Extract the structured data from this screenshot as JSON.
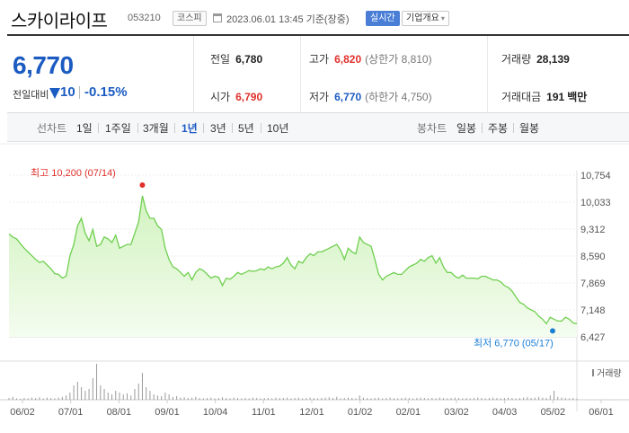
{
  "header": {
    "name": "스카이라이프",
    "code": "053210",
    "market": "코스피",
    "datetime": "2023.06.01 13:45 기준(장중)",
    "live_label": "실시간",
    "company_label": "기업개요",
    "chevron": "▾"
  },
  "summary": {
    "price": "6,770",
    "change_label": "전일대비",
    "change_value": "10",
    "change_percent": "-0.15%",
    "prev_close": {
      "label": "전일",
      "value": "6,780"
    },
    "open": {
      "label": "시가",
      "value": "6,790"
    },
    "high": {
      "label": "고가",
      "value": "6,820",
      "sub": "(상한가 8,810)"
    },
    "low": {
      "label": "저가",
      "value": "6,770",
      "sub": "(하한가 4,750)"
    },
    "volume": {
      "label": "거래량",
      "value": "28,139"
    },
    "turnover": {
      "label": "거래대금",
      "value": "191",
      "unit": "백만"
    }
  },
  "period_bar": {
    "line_title": "선차트",
    "line_options": [
      "1일",
      "1주일",
      "3개월",
      "1년",
      "3년",
      "5년",
      "10년"
    ],
    "active_option": "1년",
    "candle_title": "봉차트",
    "candle_options": [
      "일봉",
      "주봉",
      "월봉"
    ]
  },
  "chart_data": {
    "type": "area",
    "ylim": [
      6427,
      10754
    ],
    "y_ticks": [
      10754,
      10033,
      9312,
      8590,
      7869,
      7148,
      6427
    ],
    "y_tick_labels": [
      "10,754",
      "10,033",
      "9,312",
      "8,590",
      "7,869",
      "7,148",
      "6,427"
    ],
    "x_tick_labels": [
      "06/02",
      "07/01",
      "08/01",
      "09/01",
      "10/04",
      "11/01",
      "12/01",
      "01/02",
      "02/01",
      "03/02",
      "04/03",
      "05/02",
      "06/01"
    ],
    "max_label": "최고 10,200 (07/14)",
    "min_label": "최저 6,770 (05/17)",
    "volume_label": "거래량",
    "colors": {
      "line": "#6fcf4f",
      "fill_top": "#d2f3c0",
      "fill_bottom": "#f4fcef",
      "max": "#e0302b",
      "min": "#1b7fd6",
      "volume": "#9a9a9a"
    },
    "series": [
      {
        "values": [
          9180,
          9100,
          9050,
          8920,
          8800,
          8700,
          8600,
          8500,
          8420,
          8450,
          8350,
          8250,
          8120,
          8100,
          8000,
          8050,
          8600,
          8900,
          9400,
          9600,
          9200,
          9000,
          9300,
          8850,
          8900,
          9100,
          9050,
          8950,
          9150,
          8800,
          8850,
          8900,
          8900,
          9200,
          9500,
          10200,
          9800,
          9600,
          9600,
          9400,
          9300,
          8800,
          8500,
          8300,
          8250,
          8150,
          8050,
          8150,
          7950,
          8150,
          8250,
          8200,
          8100,
          8000,
          8050,
          8020,
          7800,
          8000,
          7970,
          8050,
          8150,
          8100,
          8150,
          8200,
          8180,
          8200,
          8250,
          8220,
          8300,
          8250,
          8300,
          8320,
          8400,
          8550,
          8350,
          8250,
          8450,
          8400,
          8550,
          8650,
          8600,
          8700,
          8700,
          8750,
          8800,
          8850,
          8900,
          8750,
          8500,
          8800,
          8700,
          8650,
          9100,
          8950,
          8900,
          8850,
          8500,
          8100,
          7950,
          8050,
          8100,
          8150,
          8100,
          8100,
          8200,
          8300,
          8350,
          8400,
          8500,
          8450,
          8550,
          8600,
          8400,
          8550,
          8300,
          8150,
          8150,
          8050,
          8000,
          8080,
          8000,
          8000,
          8000,
          7980,
          8050,
          8050,
          8000,
          7950,
          7950,
          7900,
          7800,
          7750,
          7650,
          7500,
          7350,
          7300,
          7200,
          7150,
          7100,
          6980,
          6900,
          6780,
          6950,
          6900,
          6850,
          6850,
          6950,
          6900,
          6800,
          6780
        ]
      }
    ],
    "volume": [
      0.05,
      0.08,
      0.04,
      0.03,
      0.05,
      0.04,
      0.06,
      0.05,
      0.07,
      0.04,
      0.06,
      0.05,
      0.04,
      0.06,
      0.08,
      0.12,
      0.2,
      0.4,
      0.5,
      0.35,
      0.25,
      0.3,
      0.6,
      1.0,
      0.4,
      0.3,
      0.2,
      0.15,
      0.25,
      0.2,
      0.15,
      0.18,
      0.12,
      0.3,
      0.45,
      0.75,
      0.35,
      0.25,
      0.15,
      0.12,
      0.1,
      0.2,
      0.15,
      0.08,
      0.1,
      0.06,
      0.07,
      0.05,
      0.06,
      0.08,
      0.05,
      0.04,
      0.05,
      0.06,
      0.04,
      0.05,
      0.07,
      0.05,
      0.04,
      0.06,
      0.05,
      0.04,
      0.05,
      0.04,
      0.06,
      0.05,
      0.04,
      0.05,
      0.05,
      0.04,
      0.06,
      0.05,
      0.05,
      0.06,
      0.04,
      0.05,
      0.06,
      0.04,
      0.05,
      0.06,
      0.05,
      0.04,
      0.05,
      0.06,
      0.07,
      0.05,
      0.08,
      0.04,
      0.05,
      0.06,
      0.05,
      0.04,
      0.12,
      0.06,
      0.05,
      0.04,
      0.05,
      0.06,
      0.04,
      0.05,
      0.06,
      0.05,
      0.04,
      0.05,
      0.06,
      0.05,
      0.04,
      0.05,
      0.06,
      0.05,
      0.04,
      0.05,
      0.04,
      0.06,
      0.05,
      0.04,
      0.05,
      0.06,
      0.05,
      0.04,
      0.05,
      0.04,
      0.05,
      0.06,
      0.05,
      0.04,
      0.05,
      0.06,
      0.05,
      0.04,
      0.05,
      0.06,
      0.05,
      0.04,
      0.05,
      0.06,
      0.07,
      0.05,
      0.06,
      0.08,
      0.06,
      0.05,
      0.12,
      0.25,
      0.08,
      0.06,
      0.05,
      0.04,
      0.05,
      0.03
    ]
  }
}
